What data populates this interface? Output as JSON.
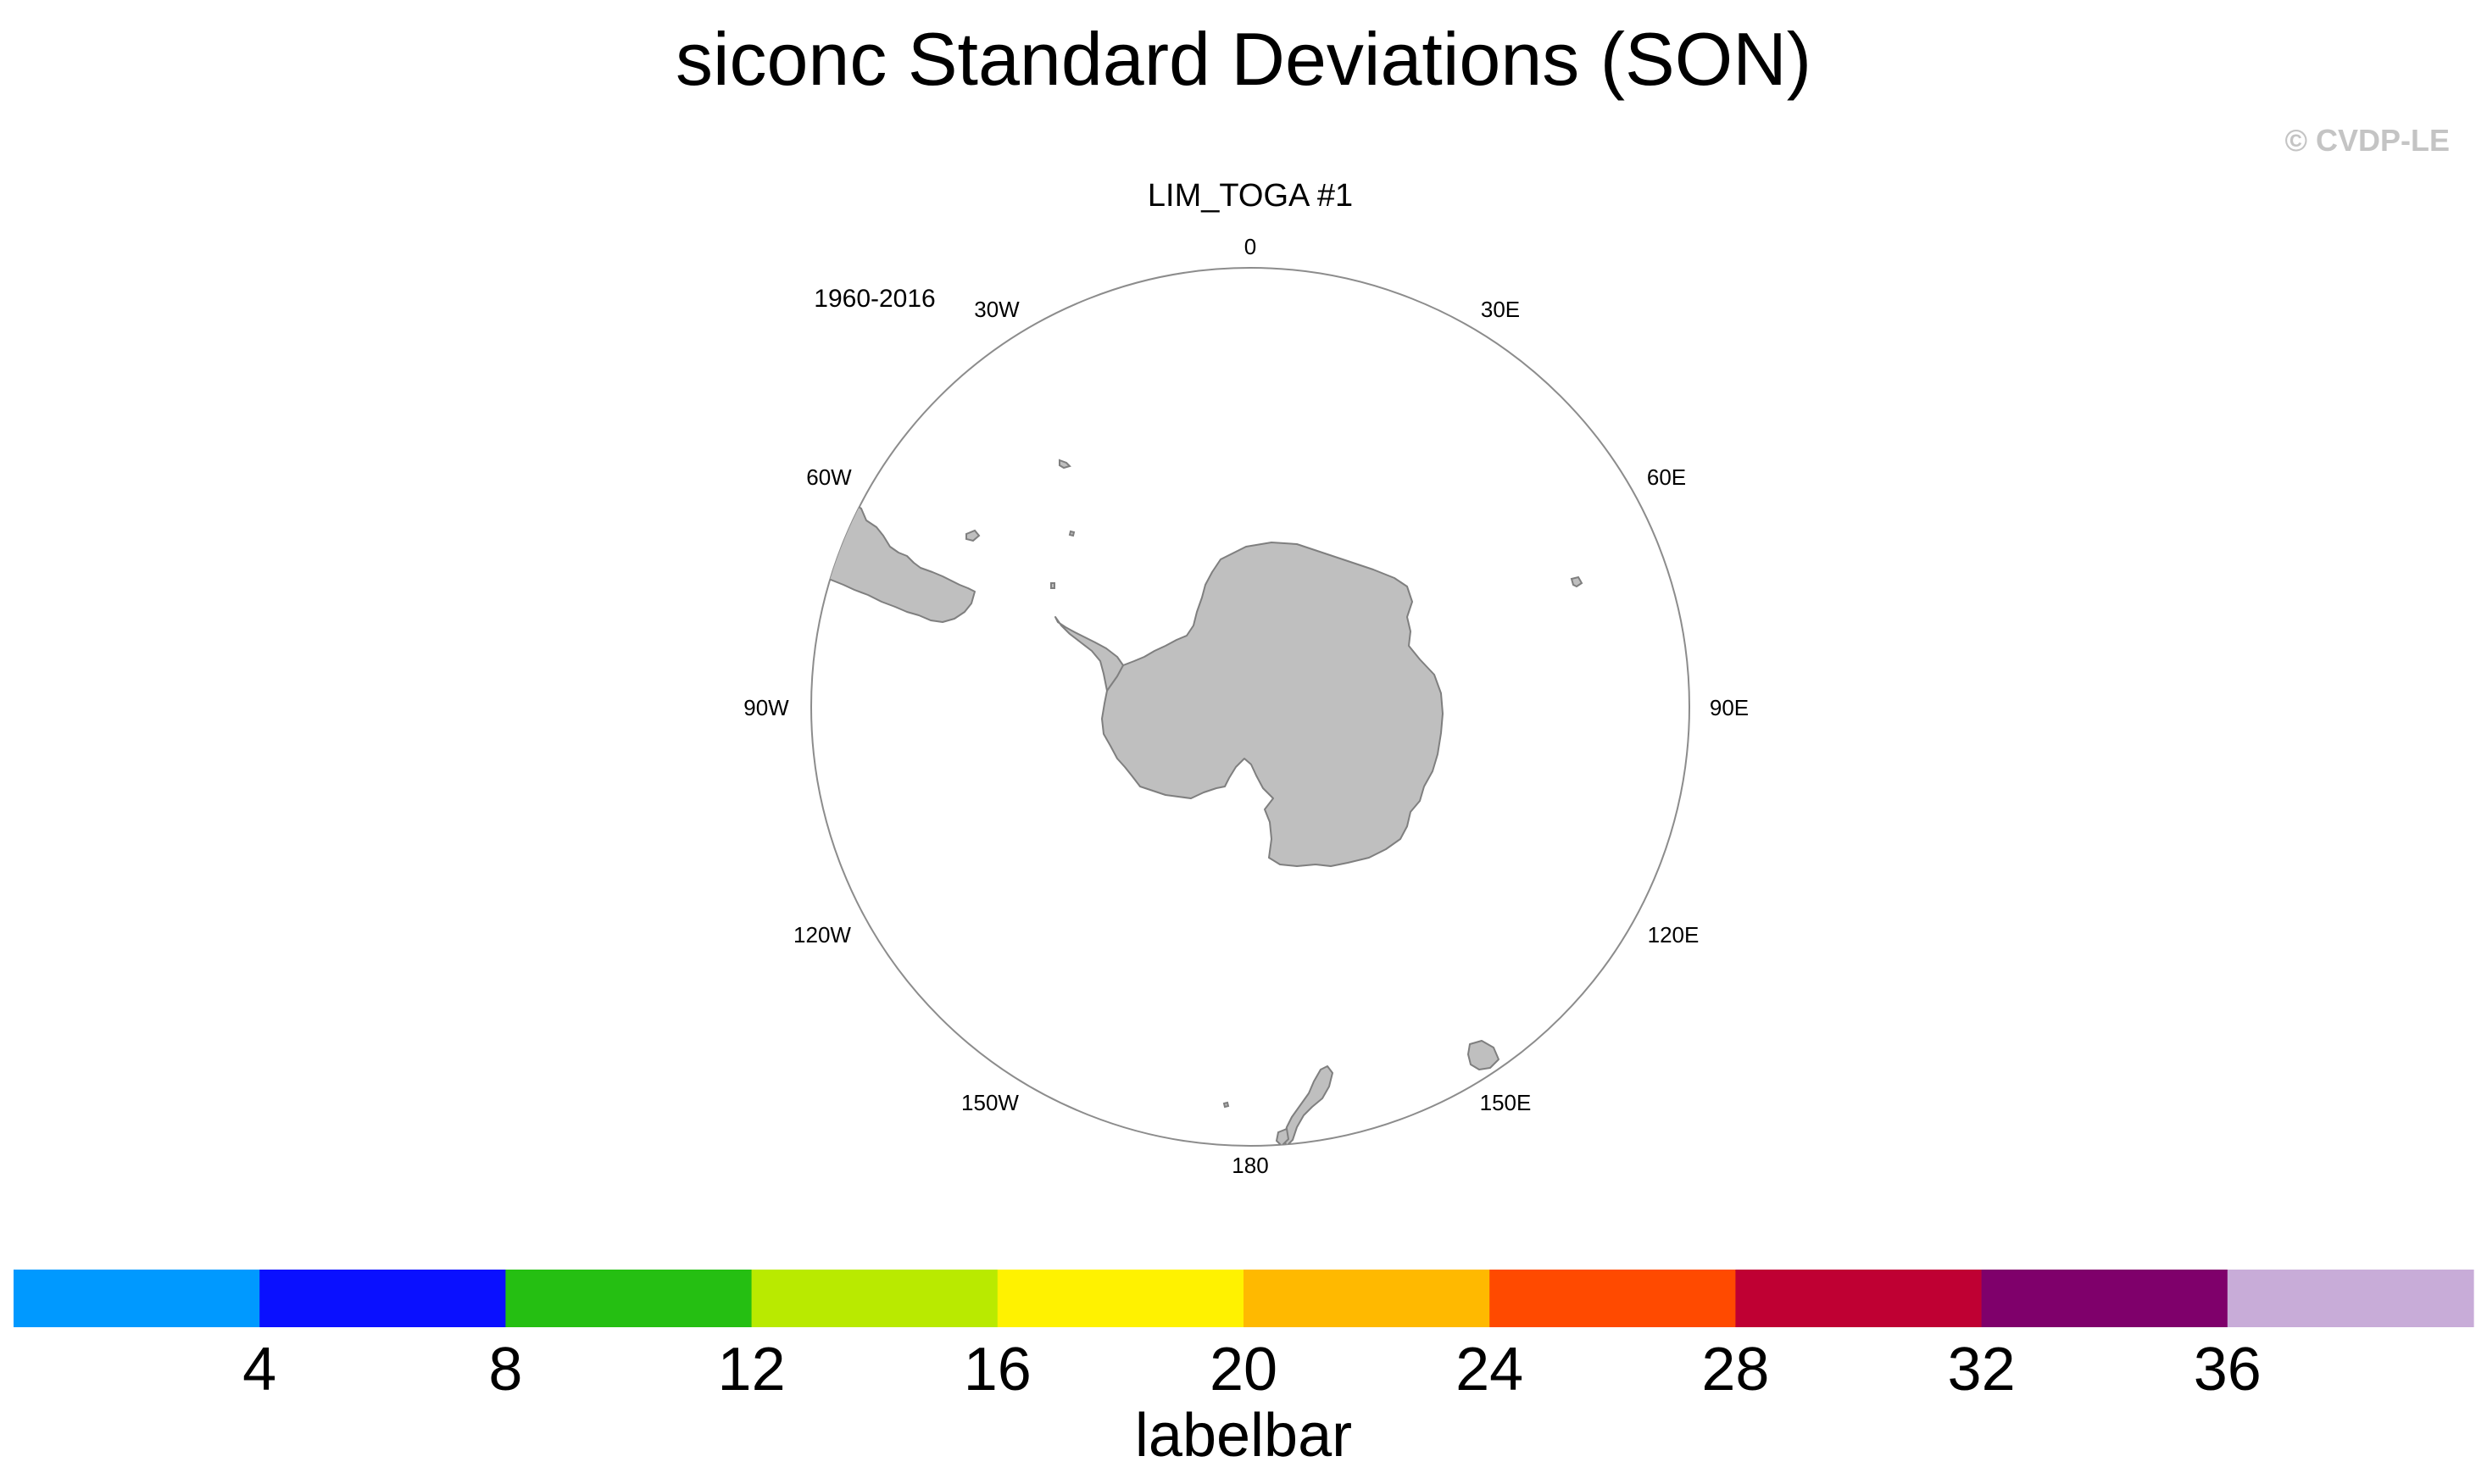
{
  "title": "siconc Standard Deviations (SON)",
  "watermark": "© CVDP-LE",
  "panel": {
    "subtitle": "LIM_TOGA #1",
    "period": "1960-2016",
    "longitude_labels": {
      "0": "0",
      "30E": "30E",
      "60E": "60E",
      "90E": "90E",
      "120E": "120E",
      "150E": "150E",
      "180": "180",
      "150W": "150W",
      "120W": "120W",
      "90W": "90W",
      "60W": "60W",
      "30W": "30W"
    },
    "land_color": "#bfbfbf",
    "land_outline_color": "#7f7f7f",
    "boundary_color": "#8c8c8c"
  },
  "labelbar": {
    "title": "labelbar",
    "tick_labels": [
      "4",
      "8",
      "12",
      "16",
      "20",
      "24",
      "28",
      "32",
      "36"
    ],
    "colors": [
      "#0099ff",
      "#0a10ff",
      "#25bf12",
      "#b9ea00",
      "#fff200",
      "#ffb900",
      "#ff4a00",
      "#bf0033",
      "#7f006b",
      "#c8acd8"
    ]
  }
}
